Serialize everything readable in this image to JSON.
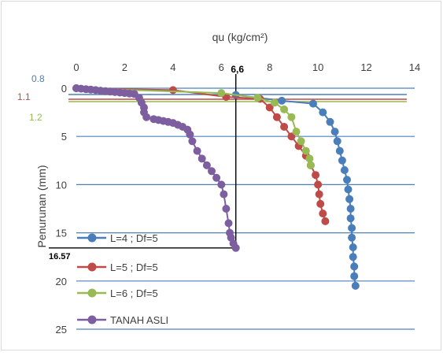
{
  "chart_data": {
    "type": "line",
    "xlabel": "qu (kg/cm²)",
    "ylabel": "Penurunan (mm)",
    "xlim": [
      0,
      14
    ],
    "ylim": [
      0,
      25
    ],
    "x_ticks": [
      "0",
      "2",
      "4",
      "6",
      "8",
      "10",
      "12",
      "14"
    ],
    "y_ticks": [
      "0",
      "5",
      "10",
      "15",
      "20",
      "25"
    ],
    "x_axis_position": "top",
    "y_axis_inverted": true,
    "grid": "horizontal",
    "legend_position": "bottom-left",
    "series": [
      {
        "name": "L=4 ; Df=5",
        "color": "#4a7ebb",
        "points": [
          [
            6.6,
            0.7
          ],
          [
            8.5,
            1.3
          ],
          [
            9.8,
            1.6
          ],
          [
            10.2,
            2.5
          ],
          [
            10.5,
            3.5
          ],
          [
            10.7,
            4.5
          ],
          [
            10.8,
            5.5
          ],
          [
            10.9,
            6.5
          ],
          [
            11.0,
            7.5
          ],
          [
            11.1,
            8.5
          ],
          [
            11.2,
            9.5
          ],
          [
            11.25,
            10.5
          ],
          [
            11.3,
            11.5
          ],
          [
            11.35,
            12.5
          ],
          [
            11.35,
            13.5
          ],
          [
            11.4,
            14.5
          ],
          [
            11.4,
            15.5
          ],
          [
            11.45,
            16.5
          ],
          [
            11.45,
            17.5
          ],
          [
            11.5,
            18.5
          ],
          [
            11.5,
            19.5
          ],
          [
            11.55,
            20.5
          ]
        ]
      },
      {
        "name": "L=5 ; Df=5",
        "color": "#be4b48",
        "points": [
          [
            0,
            0
          ],
          [
            4.0,
            0.2
          ],
          [
            6.2,
            0.9
          ],
          [
            7.6,
            1.1
          ],
          [
            8.0,
            2.0
          ],
          [
            8.3,
            3.0
          ],
          [
            8.6,
            4.0
          ],
          [
            8.9,
            5.0
          ],
          [
            9.2,
            6.0
          ],
          [
            9.5,
            7.0
          ],
          [
            9.7,
            8.0
          ],
          [
            9.9,
            9.0
          ],
          [
            10.0,
            10.0
          ],
          [
            10.05,
            11.0
          ],
          [
            10.1,
            12.0
          ],
          [
            10.2,
            13.0
          ],
          [
            10.3,
            13.8
          ]
        ]
      },
      {
        "name": "L=6 ; Df=5",
        "color": "#98b954",
        "points": [
          [
            0,
            0
          ],
          [
            6.0,
            0.5
          ],
          [
            7.5,
            1.0
          ],
          [
            8.2,
            1.5
          ],
          [
            8.6,
            2.2
          ],
          [
            8.9,
            3.0
          ],
          [
            9.1,
            4.5
          ],
          [
            9.3,
            5.5
          ],
          [
            9.5,
            6.5
          ],
          [
            9.65,
            7.3
          ],
          [
            9.7,
            8.0
          ]
        ]
      },
      {
        "name": "TANAH ASLI",
        "color": "#7d5fa0",
        "points": [
          [
            0,
            0
          ],
          [
            0.2,
            0.05
          ],
          [
            0.4,
            0.1
          ],
          [
            0.6,
            0.15
          ],
          [
            0.8,
            0.2
          ],
          [
            1.0,
            0.25
          ],
          [
            1.2,
            0.3
          ],
          [
            1.4,
            0.35
          ],
          [
            1.6,
            0.4
          ],
          [
            1.8,
            0.45
          ],
          [
            2.0,
            0.5
          ],
          [
            2.2,
            0.55
          ],
          [
            2.4,
            0.6
          ],
          [
            2.6,
            1.0
          ],
          [
            2.7,
            1.5
          ],
          [
            2.8,
            2.0
          ],
          [
            2.8,
            2.5
          ],
          [
            2.9,
            3.0
          ],
          [
            3.2,
            3.2
          ],
          [
            3.4,
            3.3
          ],
          [
            3.6,
            3.4
          ],
          [
            3.8,
            3.5
          ],
          [
            4.0,
            3.6
          ],
          [
            4.2,
            3.8
          ],
          [
            4.4,
            4.0
          ],
          [
            4.6,
            4.3
          ],
          [
            4.7,
            4.8
          ],
          [
            4.8,
            5.5
          ],
          [
            5.0,
            6.5
          ],
          [
            5.2,
            7.3
          ],
          [
            5.4,
            8.0
          ],
          [
            5.6,
            8.6
          ],
          [
            5.8,
            9.3
          ],
          [
            6.0,
            10.0
          ],
          [
            6.1,
            11.0
          ],
          [
            6.2,
            12.5
          ],
          [
            6.3,
            14.0
          ],
          [
            6.35,
            15.0
          ],
          [
            6.4,
            15.5
          ],
          [
            6.5,
            16.1
          ],
          [
            6.6,
            16.57
          ]
        ]
      }
    ],
    "reference_lines": [
      {
        "label": "0.8",
        "color": "#4a7ebb"
      },
      {
        "label": "1.1",
        "color": "#be4b48"
      },
      {
        "label": "1.2",
        "color": "#98b954"
      }
    ],
    "annotations": [
      {
        "label": "6,6",
        "x": 6.6
      },
      {
        "label": "16.57",
        "y": 16.57
      }
    ]
  }
}
